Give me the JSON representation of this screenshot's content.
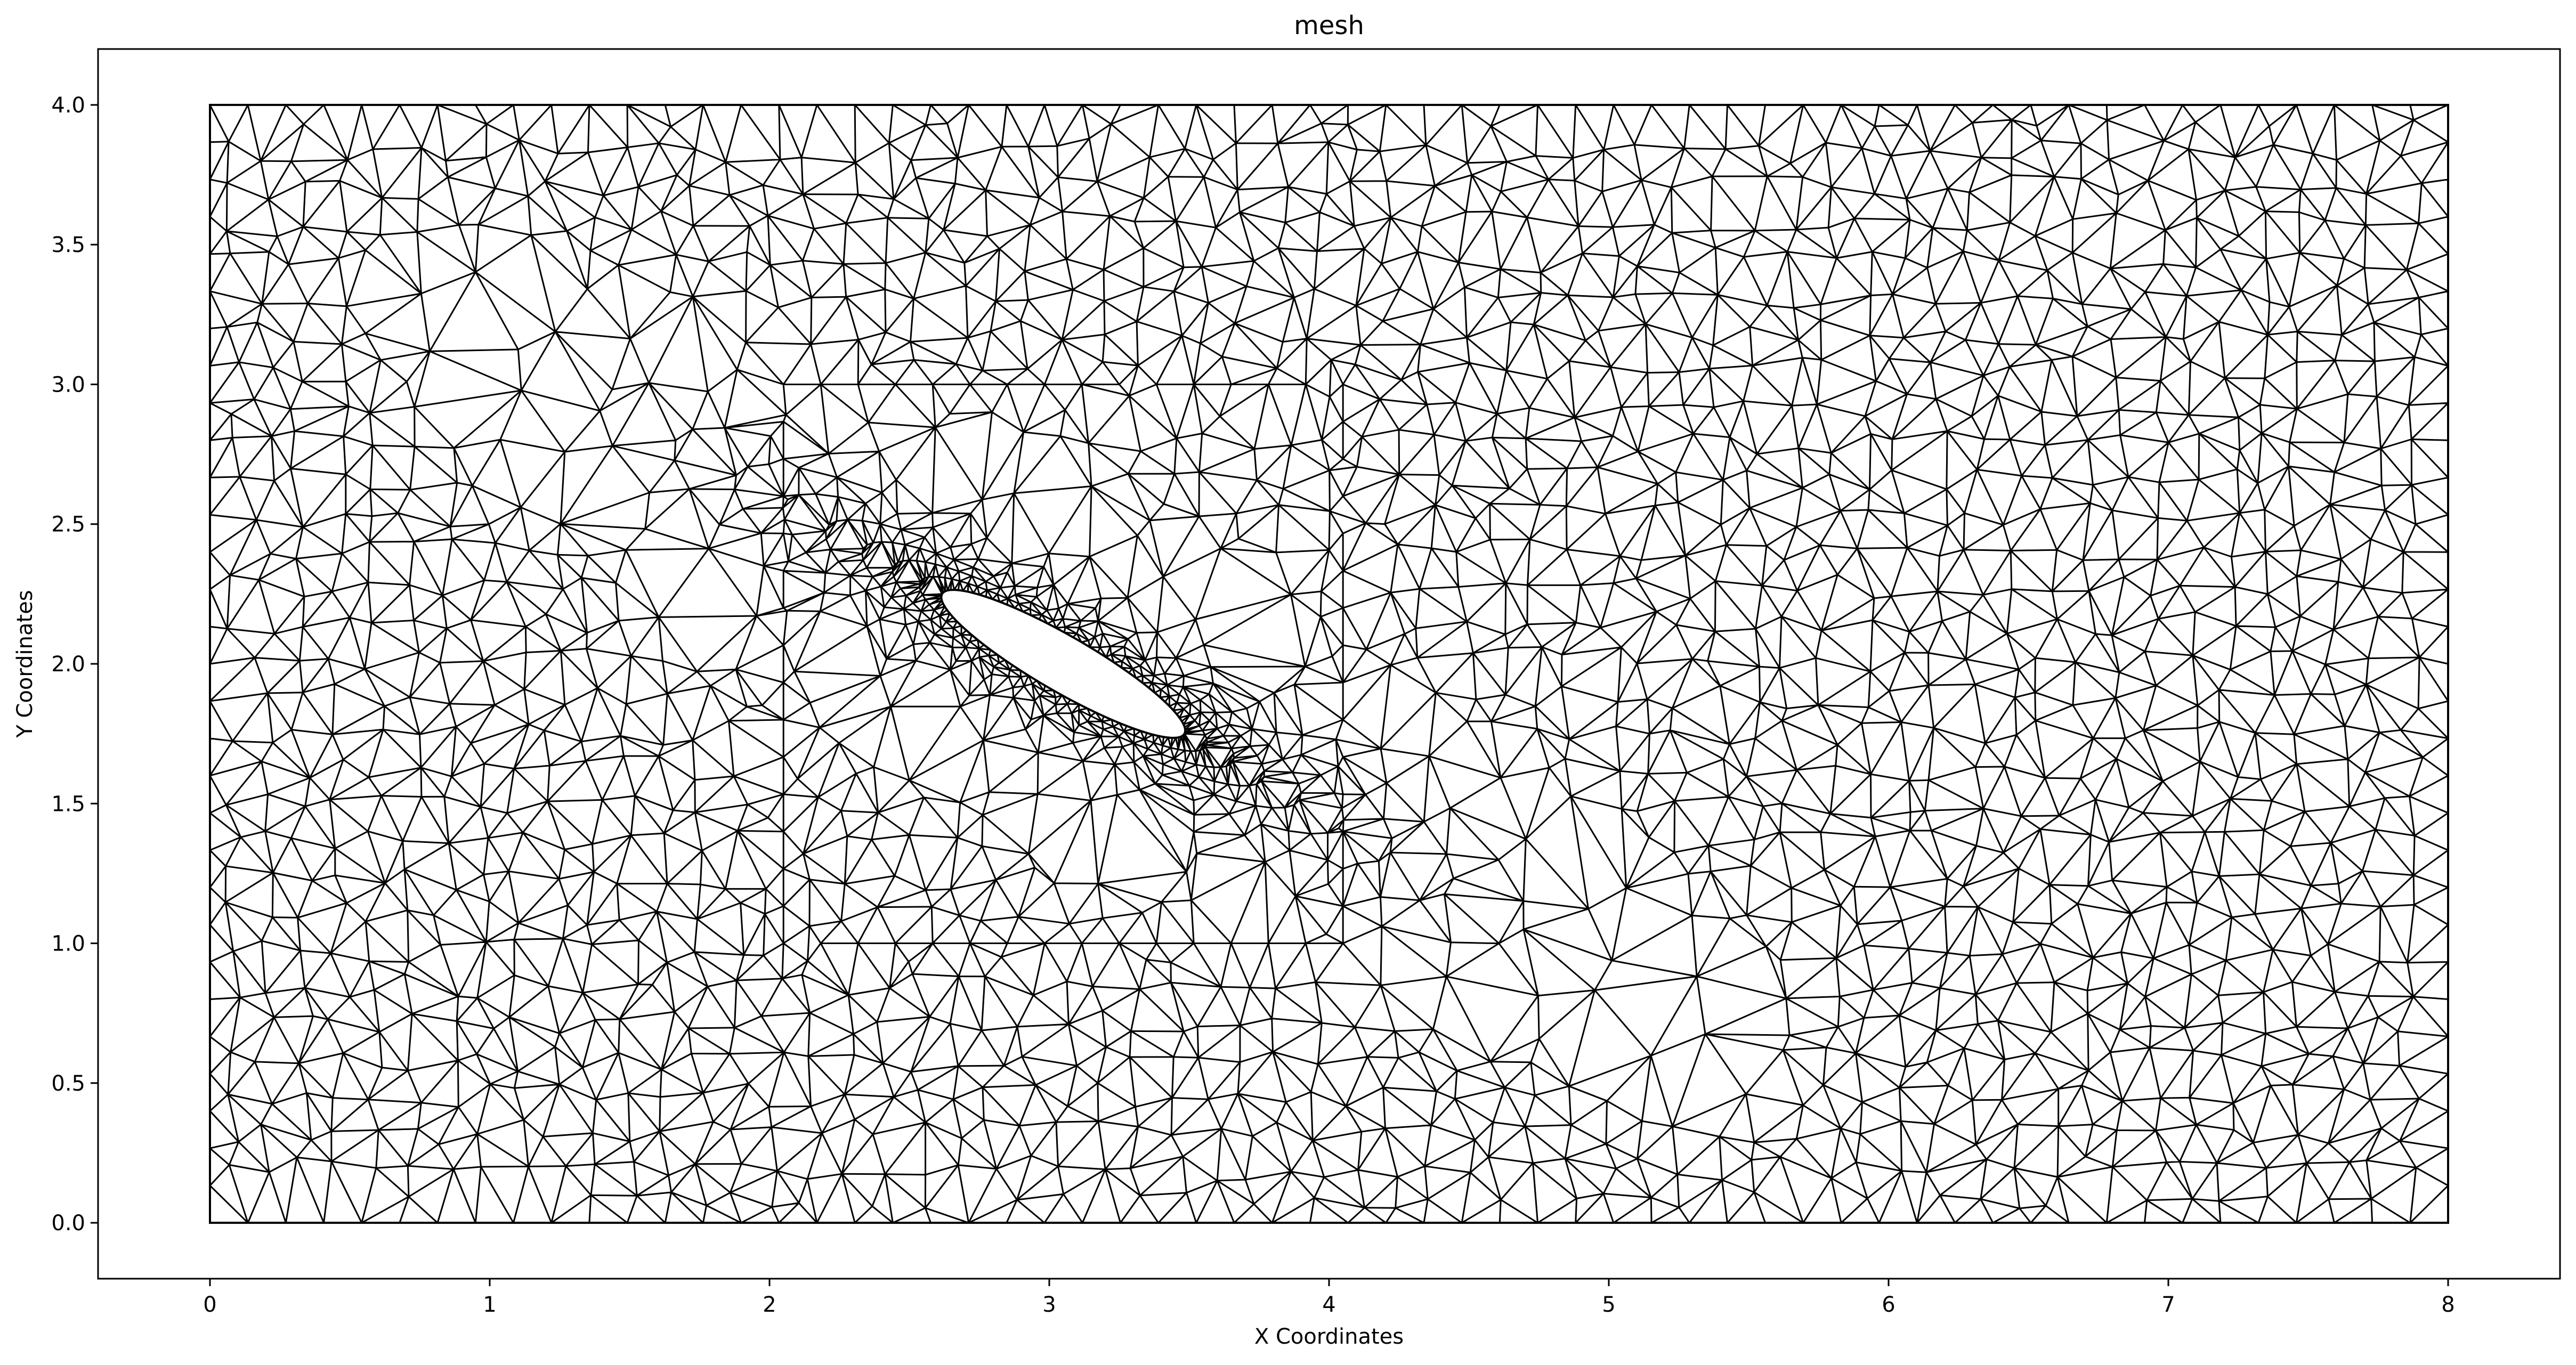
{
  "chart_data": {
    "type": "mesh",
    "title": "mesh",
    "xlabel": "X Coordinates",
    "ylabel": "Y Coordinates",
    "xlim": [
      -0.4,
      8.4
    ],
    "ylim": [
      -0.2,
      4.2
    ],
    "x_ticks": [
      0,
      1,
      2,
      3,
      4,
      5,
      6,
      7,
      8
    ],
    "y_ticks": [
      0.0,
      0.5,
      1.0,
      1.5,
      2.0,
      2.5,
      3.0,
      3.5,
      4.0
    ],
    "x_tick_labels": [
      "0",
      "1",
      "2",
      "3",
      "4",
      "5",
      "6",
      "7",
      "8"
    ],
    "y_tick_labels": [
      "0.0",
      "0.5",
      "1.0",
      "1.5",
      "2.0",
      "2.5",
      "3.0",
      "3.5",
      "4.0"
    ],
    "domain": {
      "x": [
        0,
        8
      ],
      "y": [
        0,
        4
      ]
    },
    "refinement_box": {
      "x": [
        2.05,
        4.05
      ],
      "y": [
        1.0,
        3.0
      ]
    },
    "obstacle": {
      "shape": "ellipse",
      "center": [
        3.05,
        2.0
      ],
      "semi_axes": [
        0.5,
        0.1
      ],
      "rotation_deg": -30
    },
    "edge_color": "#000000",
    "grid": false
  }
}
